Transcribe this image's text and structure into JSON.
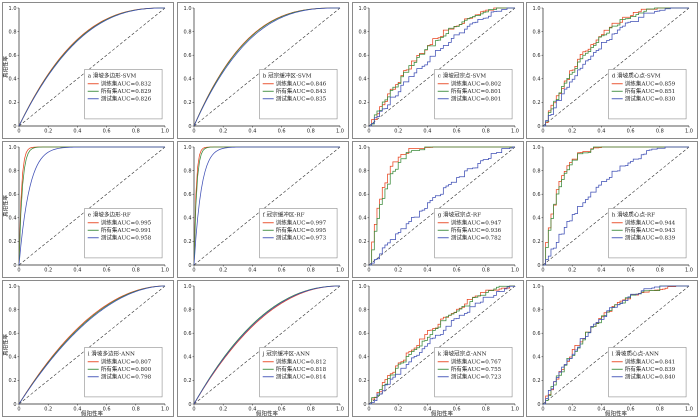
{
  "colors": {
    "train": "#e8431f",
    "all": "#3a8a3a",
    "test": "#3f4fb5",
    "diag": "#333333",
    "axis": "#222222"
  },
  "legend_series": [
    "训练集AUC=",
    "所有集AUC=",
    "测试集AUC="
  ],
  "axes": {
    "xlabel": "假阳性率",
    "ylabel": "真阳性率",
    "xlim": [
      0,
      1
    ],
    "ylim": [
      0,
      1
    ],
    "ticks": [
      "0",
      "0.2",
      "0.4",
      "0.6",
      "0.8",
      "1.0"
    ]
  },
  "chart_data": [
    {
      "type": "line",
      "title": "a 滑坡多边形-SVM",
      "auc": [
        "0.832",
        "0.829",
        "0.826"
      ],
      "shape": "smooth",
      "k": [
        2.6,
        2.55,
        2.5
      ],
      "show_xlabel": false,
      "show_ylabel": true
    },
    {
      "type": "line",
      "title": "b 冠宗缓冲区-SVM",
      "auc": [
        "0.846",
        "0.843",
        "0.835"
      ],
      "shape": "smooth",
      "k": [
        2.9,
        2.85,
        2.75
      ],
      "show_xlabel": false,
      "show_ylabel": false
    },
    {
      "type": "line",
      "title": "c 滑坡冠宗点-SVM",
      "auc": [
        "0.802",
        "0.801",
        "0.801"
      ],
      "shape": "step",
      "k": [
        2.2,
        2.1,
        1.6
      ],
      "show_xlabel": false,
      "show_ylabel": false
    },
    {
      "type": "line",
      "title": "d 滑坡质心点-SVM",
      "auc": [
        "0.859",
        "0.851",
        "0.830"
      ],
      "shape": "step",
      "k": [
        3.0,
        2.8,
        2.3
      ],
      "show_xlabel": false,
      "show_ylabel": false
    },
    {
      "type": "line",
      "title": "e 滑坡多边形-RF",
      "auc": [
        "0.995",
        "0.991",
        "0.958"
      ],
      "shape": "smooth",
      "k": [
        60,
        45,
        14
      ],
      "show_xlabel": false,
      "show_ylabel": true
    },
    {
      "type": "line",
      "title": "f 冠宗缓冲区-RF",
      "auc": [
        "0.997",
        "0.995",
        "0.973"
      ],
      "shape": "smooth",
      "k": [
        70,
        55,
        20
      ],
      "show_xlabel": false,
      "show_ylabel": false
    },
    {
      "type": "line",
      "title": "g 滑坡冠宗点-RF",
      "auc": [
        "0.947",
        "0.936",
        "0.782"
      ],
      "shape": "step",
      "k": [
        11,
        9,
        1.4
      ],
      "show_xlabel": false,
      "show_ylabel": false
    },
    {
      "type": "line",
      "title": "h 滑坡质心点-RF",
      "auc": [
        "0.944",
        "0.943",
        "0.839"
      ],
      "shape": "step",
      "k": [
        10,
        9.5,
        2.4
      ],
      "show_xlabel": false,
      "show_ylabel": false
    },
    {
      "type": "line",
      "title": "i 滑坡多边形-ANN",
      "auc": [
        "0.807",
        "0.800",
        "0.798"
      ],
      "shape": "smooth",
      "k": [
        2.0,
        1.95,
        1.9
      ],
      "show_xlabel": true,
      "show_ylabel": true
    },
    {
      "type": "line",
      "title": "j 冠宗缓冲区-ANN",
      "auc": [
        "0.812",
        "0.818",
        "0.814"
      ],
      "shape": "smooth",
      "k": [
        2.1,
        2.2,
        2.15
      ],
      "show_xlabel": true,
      "show_ylabel": false
    },
    {
      "type": "line",
      "title": "k 滑坡冠宗点-ANN",
      "auc": [
        "0.767",
        "0.755",
        "0.723"
      ],
      "shape": "step",
      "k": [
        1.8,
        1.7,
        1.4
      ],
      "show_xlabel": true,
      "show_ylabel": false
    },
    {
      "type": "line",
      "title": "l 滑坡质心点-ANN",
      "auc": [
        "0.841",
        "0.839",
        "0.840"
      ],
      "shape": "step",
      "k": [
        2.6,
        2.55,
        2.6
      ],
      "show_xlabel": true,
      "show_ylabel": false
    }
  ]
}
